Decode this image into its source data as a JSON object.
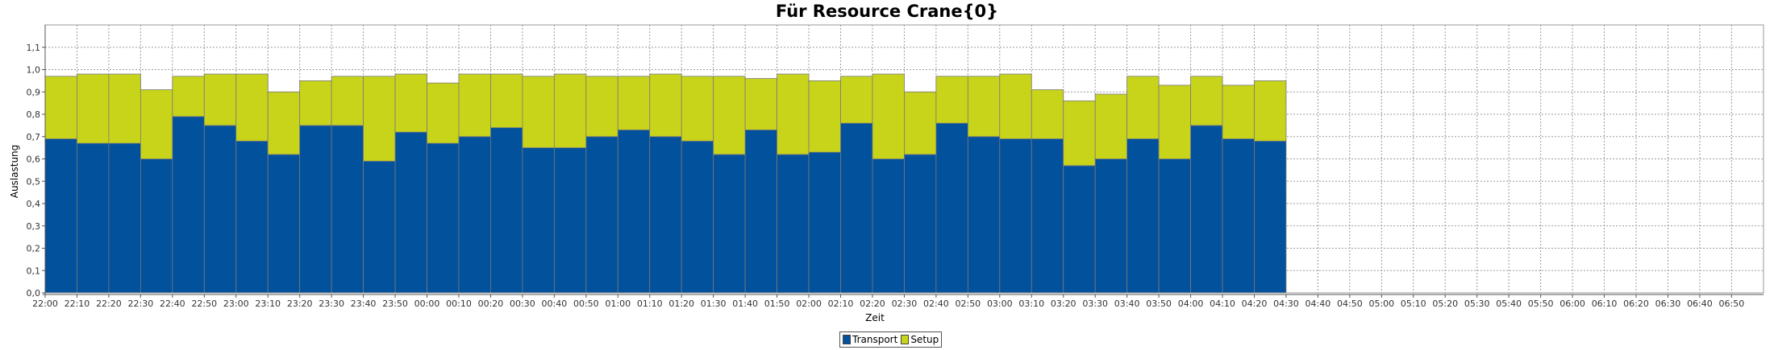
{
  "chart_data": {
    "type": "bar",
    "stacked": true,
    "title": "Für Resource Crane{0}",
    "xlabel": "Zeit",
    "ylabel": "Auslastung",
    "ylim": [
      0,
      1.2
    ],
    "yticks": [
      "0,0",
      "0,1",
      "0,2",
      "0,3",
      "0,4",
      "0,5",
      "0,6",
      "0,7",
      "0,8",
      "0,9",
      "1,0",
      "1,1"
    ],
    "xticks": [
      "22:00",
      "22:10",
      "22:20",
      "22:30",
      "22:40",
      "22:50",
      "23:00",
      "23:10",
      "23:20",
      "23:30",
      "23:40",
      "23:50",
      "00:00",
      "00:10",
      "00:20",
      "00:30",
      "00:40",
      "00:50",
      "01:00",
      "01:10",
      "01:20",
      "01:30",
      "01:40",
      "01:50",
      "02:00",
      "02:10",
      "02:20",
      "02:30",
      "02:40",
      "02:50",
      "03:00",
      "03:10",
      "03:20",
      "03:30",
      "03:40",
      "03:50",
      "04:00",
      "04:10",
      "04:20",
      "04:30",
      "04:40",
      "04:50",
      "05:00",
      "05:10",
      "05:20",
      "05:30",
      "05:40",
      "05:50",
      "06:00",
      "06:10",
      "06:20",
      "06:30",
      "06:40",
      "06:50"
    ],
    "categories": [
      "22:00",
      "22:10",
      "22:20",
      "22:30",
      "22:40",
      "22:50",
      "23:00",
      "23:10",
      "23:20",
      "23:30",
      "23:40",
      "23:50",
      "00:00",
      "00:10",
      "00:20",
      "00:30",
      "00:40",
      "00:50",
      "01:00",
      "01:10",
      "01:20",
      "01:30",
      "01:40",
      "01:50",
      "02:00",
      "02:10",
      "02:20",
      "02:30",
      "02:40",
      "02:50",
      "03:00",
      "03:10",
      "03:20",
      "03:30",
      "03:40",
      "03:50",
      "04:00",
      "04:10",
      "04:20"
    ],
    "series": [
      {
        "name": "Transport",
        "color": "#02519c",
        "values": [
          0.69,
          0.67,
          0.67,
          0.6,
          0.79,
          0.75,
          0.68,
          0.62,
          0.75,
          0.75,
          0.59,
          0.72,
          0.67,
          0.7,
          0.74,
          0.65,
          0.65,
          0.7,
          0.73,
          0.7,
          0.68,
          0.62,
          0.73,
          0.62,
          0.63,
          0.76,
          0.6,
          0.62,
          0.76,
          0.7,
          0.69,
          0.69,
          0.57,
          0.6,
          0.69,
          0.6,
          0.75,
          0.69,
          0.68
        ]
      },
      {
        "name": "Setup",
        "color": "#c8d41a",
        "values": [
          0.28,
          0.31,
          0.31,
          0.31,
          0.18,
          0.23,
          0.3,
          0.28,
          0.2,
          0.22,
          0.38,
          0.26,
          0.27,
          0.28,
          0.24,
          0.32,
          0.33,
          0.27,
          0.24,
          0.28,
          0.29,
          0.35,
          0.23,
          0.36,
          0.32,
          0.21,
          0.38,
          0.28,
          0.21,
          0.27,
          0.29,
          0.22,
          0.29,
          0.29,
          0.28,
          0.33,
          0.22,
          0.24,
          0.27
        ]
      }
    ],
    "grid": true,
    "legend_position": "bottom-center"
  }
}
